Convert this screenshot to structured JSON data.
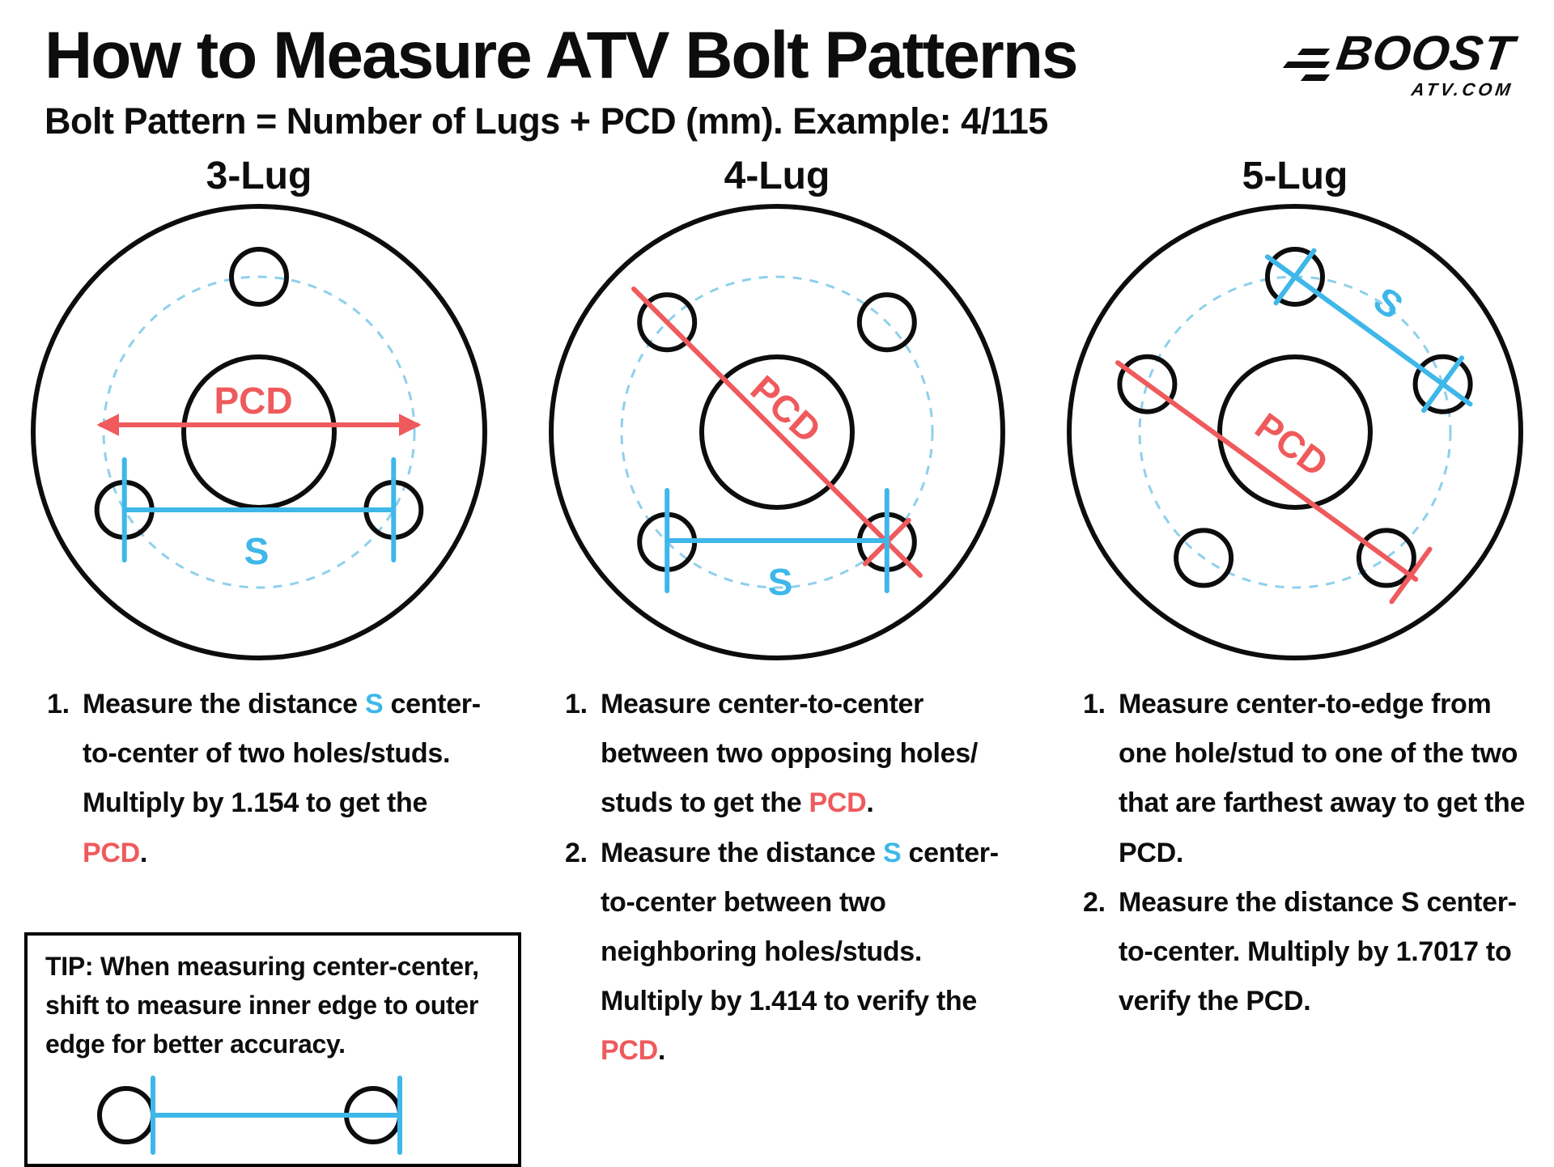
{
  "page": {
    "title": "How to Measure ATV Bolt Patterns",
    "subtitle": "Bolt Pattern = Number of Lugs + PCD (mm). Example: 4/115"
  },
  "logo": {
    "top": "BOOST",
    "bottom": "ATV.COM"
  },
  "colors": {
    "pcd_red": "#ef5a5c",
    "s_blue": "#3eb7e9",
    "dashed_blue": "#8fd0ec",
    "ink": "#0d0d0d"
  },
  "diagrams": [
    {
      "id": "3-lug",
      "heading": "3-Lug",
      "lugs": 3,
      "pcd_label": "PCD",
      "s_label": "S"
    },
    {
      "id": "4-lug",
      "heading": "4-Lug",
      "lugs": 4,
      "pcd_label": "PCD",
      "s_label": "S"
    },
    {
      "id": "5-lug",
      "heading": "5-Lug",
      "lugs": 5,
      "pcd_label": "PCD",
      "s_label": "S"
    }
  ],
  "instructions": [
    {
      "column": "3-lug",
      "items": [
        {
          "number": "1.",
          "segments": [
            {
              "text": "Measure the distance "
            },
            {
              "text": "S",
              "color": "s_blue"
            },
            {
              "text": " center-to-center of two holes/studs. Multiply by 1.154 to get the "
            },
            {
              "text": "PCD",
              "color": "pcd_red"
            },
            {
              "text": "."
            }
          ]
        }
      ]
    },
    {
      "column": "4-lug",
      "items": [
        {
          "number": "1.",
          "segments": [
            {
              "text": "Measure center-to-center between two opposing holes/ studs to get the "
            },
            {
              "text": "PCD",
              "color": "pcd_red"
            },
            {
              "text": "."
            }
          ]
        },
        {
          "number": "2.",
          "segments": [
            {
              "text": "Measure the distance "
            },
            {
              "text": "S",
              "color": "s_blue"
            },
            {
              "text": " center-to-center between two neighboring holes/studs. Multiply by 1.414 to verify the "
            },
            {
              "text": "PCD",
              "color": "pcd_red"
            },
            {
              "text": "."
            }
          ]
        }
      ]
    },
    {
      "column": "5-lug",
      "items": [
        {
          "number": "1.",
          "segments": [
            {
              "text": "Measure center-to-edge from one hole/stud to one of the two that are farthest away to get the PCD."
            }
          ]
        },
        {
          "number": "2.",
          "segments": [
            {
              "text": "Measure the distance S center-to-center. Multiply by 1.7017 to verify the PCD."
            }
          ]
        }
      ]
    }
  ],
  "tip": {
    "text": "TIP: When measuring center-center, shift to measure inner edge to outer edge for better accuracy."
  }
}
